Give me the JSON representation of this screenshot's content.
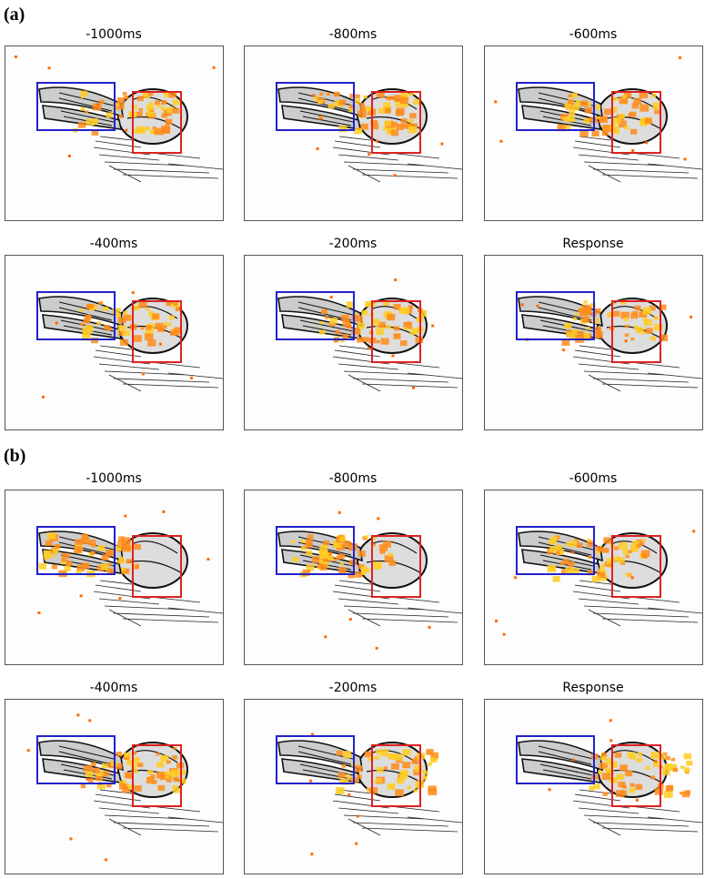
{
  "panels": [
    {
      "label": "(a)",
      "plots": [
        {
          "title": "-1000ms"
        },
        {
          "title": "-800ms"
        },
        {
          "title": "-600ms"
        },
        {
          "title": "-400ms"
        },
        {
          "title": "-200ms"
        },
        {
          "title": "Response"
        }
      ]
    },
    {
      "label": "(b)",
      "plots": [
        {
          "title": "-1000ms"
        },
        {
          "title": "-800ms"
        },
        {
          "title": "-600ms"
        },
        {
          "title": "-400ms"
        },
        {
          "title": "-200ms"
        },
        {
          "title": "Response"
        }
      ]
    }
  ]
}
